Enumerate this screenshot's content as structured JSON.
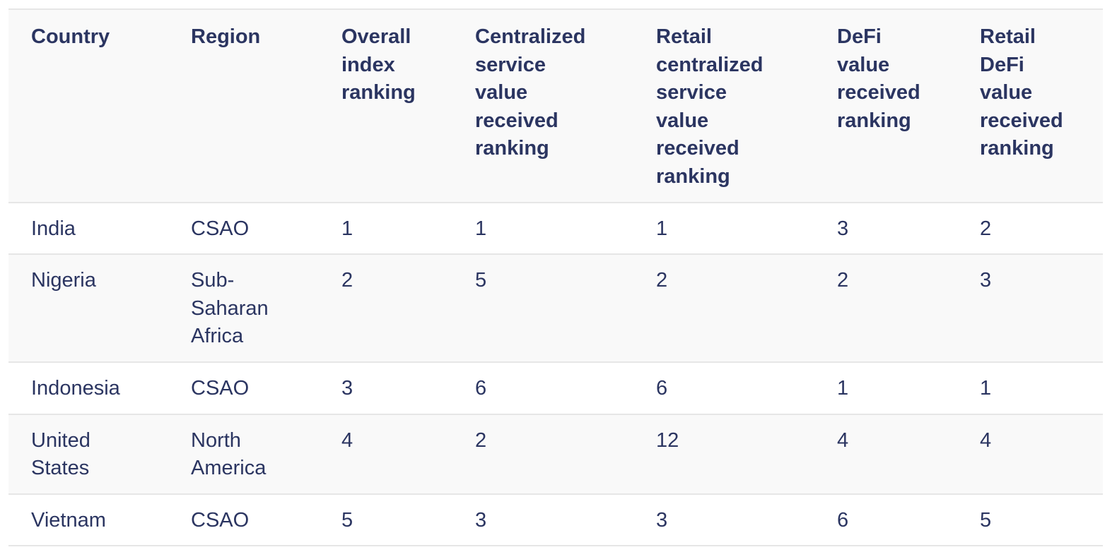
{
  "table": {
    "headers": [
      "Country",
      "Region",
      "Overall index ranking",
      "Centralized service value received ranking",
      "Retail centralized service value received ranking",
      "DeFi value received ranking",
      "Retail DeFi value received ranking"
    ],
    "rows": [
      [
        "India",
        "CSAO",
        "1",
        "1",
        "1",
        "3",
        "2"
      ],
      [
        "Nigeria",
        "Sub-Saharan Africa",
        "2",
        "5",
        "2",
        "2",
        "3"
      ],
      [
        "Indonesia",
        "CSAO",
        "3",
        "6",
        "6",
        "1",
        "1"
      ],
      [
        "United States",
        "North America",
        "4",
        "2",
        "12",
        "4",
        "4"
      ],
      [
        "Vietnam",
        "CSAO",
        "5",
        "3",
        "3",
        "6",
        "5"
      ]
    ]
  },
  "colors": {
    "text": "#2b3561",
    "header_bg": "#f9f9f9",
    "border": "#e6e6e6"
  }
}
